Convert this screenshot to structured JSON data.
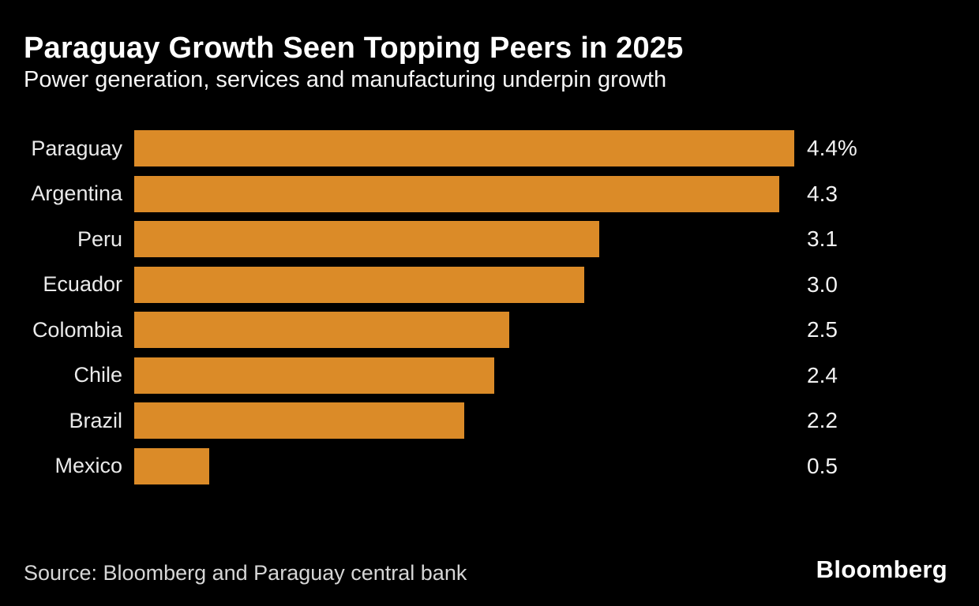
{
  "header": {
    "title": "Paraguay Growth Seen Topping Peers in 2025",
    "subtitle": "Power generation, services and manufacturing underpin growth"
  },
  "chart_data": {
    "type": "bar",
    "orientation": "horizontal",
    "title": "Paraguay Growth Seen Topping Peers in 2025",
    "subtitle": "Power generation, services and manufacturing underpin growth",
    "categories": [
      "Paraguay",
      "Argentina",
      "Peru",
      "Ecuador",
      "Colombia",
      "Chile",
      "Brazil",
      "Mexico"
    ],
    "values": [
      4.4,
      4.3,
      3.1,
      3.0,
      2.5,
      2.4,
      2.2,
      0.5
    ],
    "value_labels": [
      "4.4%",
      "4.3",
      "3.1",
      "3.0",
      "2.5",
      "2.4",
      "2.2",
      "0.5"
    ],
    "xlabel": "",
    "ylabel": "",
    "xlim": [
      0,
      4.4
    ],
    "grid": false,
    "legend": "none",
    "value_label_position": "outside-end",
    "bar_color": "#DB8B28"
  },
  "footer": {
    "source": "Source: Bloomberg and Paraguay central bank",
    "brand": "Bloomberg"
  },
  "colors": {
    "background": "#000000",
    "bar": "#DB8B28",
    "title_text": "#FFFFFF",
    "label_text": "#EAEAEA",
    "source_text": "#D6D6D6"
  }
}
